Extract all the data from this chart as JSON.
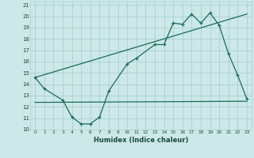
{
  "xlabel": "Humidex (Indice chaleur)",
  "bg_color": "#cce8e8",
  "grid_color": "#aacfcf",
  "line_color": "#1a6b5a",
  "xlim": [
    -0.5,
    23.5
  ],
  "ylim": [
    10,
    21.3
  ],
  "yticks": [
    10,
    11,
    12,
    13,
    14,
    15,
    16,
    17,
    18,
    19,
    20,
    21
  ],
  "xticks": [
    0,
    1,
    2,
    3,
    4,
    5,
    6,
    7,
    8,
    9,
    10,
    11,
    12,
    13,
    14,
    15,
    16,
    17,
    18,
    19,
    20,
    21,
    22,
    23
  ],
  "line1_x": [
    0,
    1,
    3,
    4,
    5,
    6,
    7,
    8,
    10,
    11,
    13,
    14,
    15,
    16,
    17,
    18,
    19,
    20,
    21,
    22,
    23
  ],
  "line1_y": [
    14.6,
    13.6,
    12.6,
    11.1,
    10.5,
    10.5,
    11.1,
    13.4,
    15.8,
    16.3,
    17.5,
    17.5,
    19.4,
    19.3,
    20.2,
    19.4,
    20.3,
    19.2,
    16.7,
    14.8,
    12.7
  ],
  "line2_x": [
    0,
    23
  ],
  "line2_y": [
    12.4,
    12.5
  ],
  "line3_x": [
    0,
    23
  ],
  "line3_y": [
    14.6,
    20.2
  ]
}
